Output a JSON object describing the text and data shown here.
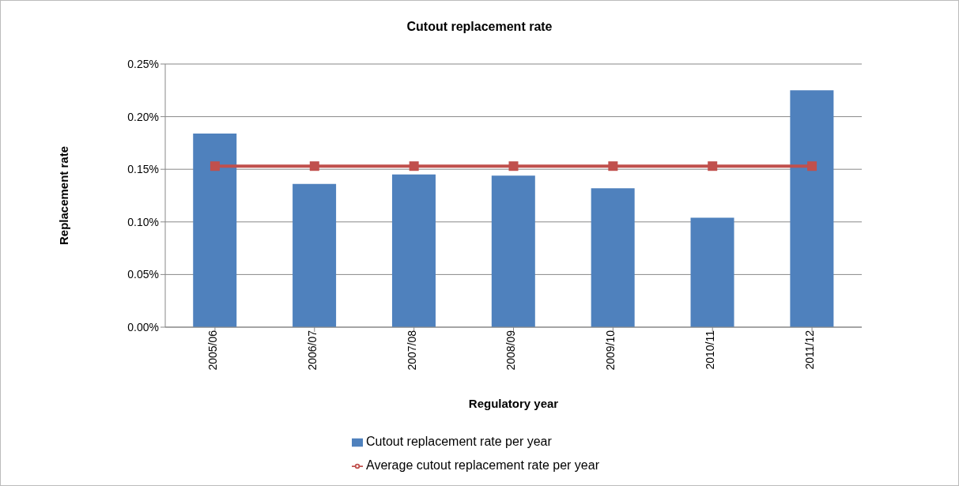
{
  "chart_data": {
    "type": "bar",
    "title": "Cutout replacement rate",
    "xlabel": "Regulatory year",
    "ylabel": "Replacement rate",
    "categories": [
      "2005/06",
      "2006/07",
      "2007/08",
      "2008/09",
      "2009/10",
      "2010/11",
      "2011/12"
    ],
    "series": [
      {
        "name": "Cutout replacement rate per year",
        "color": "#4f81bd",
        "values": [
          0.184,
          0.136,
          0.145,
          0.144,
          0.132,
          0.104,
          0.225
        ]
      },
      {
        "name": "Average cutout replacement rate per year",
        "type": "line",
        "color": "#c0504d",
        "marker": "square",
        "values": [
          0.153,
          0.153,
          0.153,
          0.153,
          0.153,
          0.153,
          0.153
        ]
      }
    ],
    "ylim": [
      0,
      0.25
    ],
    "yticks": [
      {
        "value": 0,
        "label": "0.00%"
      },
      {
        "value": 0.05,
        "label": "0.05%"
      },
      {
        "value": 0.1,
        "label": "0.10%"
      },
      {
        "value": 0.15,
        "label": "0.15%"
      },
      {
        "value": 0.2,
        "label": "0.20%"
      },
      {
        "value": 0.25,
        "label": "0.25%"
      }
    ],
    "grid": "y",
    "legend": "bottom"
  }
}
